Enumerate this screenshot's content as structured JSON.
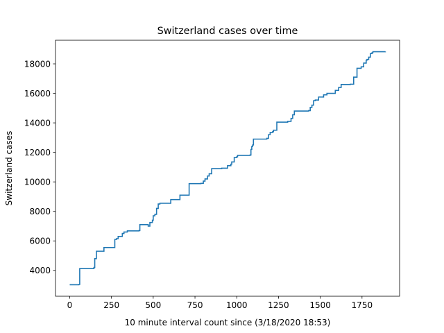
{
  "chart_data": {
    "type": "line",
    "title": "Switzerland cases over time",
    "xlabel": "10 minute interval count since (3/18/2020 18:53)",
    "ylabel": "Switzerland cases",
    "xlim": [
      -85,
      1975
    ],
    "ylim": [
      2250,
      19600
    ],
    "x_ticks": [
      0,
      250,
      500,
      750,
      1000,
      1250,
      1500,
      1750
    ],
    "y_ticks": [
      4000,
      6000,
      8000,
      10000,
      12000,
      14000,
      16000,
      18000
    ],
    "grid": false,
    "color": "#1f77b4",
    "series": [
      {
        "x": [
          0,
          55,
          60,
          145,
          150,
          160,
          205,
          270,
          280,
          290,
          315,
          325,
          345,
          415,
          420,
          470,
          480,
          495,
          500,
          510,
          520,
          530,
          540,
          605,
          660,
          715,
          785,
          800,
          810,
          825,
          835,
          850,
          910,
          945,
          965,
          970,
          985,
          1000,
          1005,
          1080,
          1085,
          1090,
          1095,
          1100,
          1180,
          1190,
          1200,
          1215,
          1220,
          1240,
          1305,
          1325,
          1335,
          1345,
          1430,
          1440,
          1450,
          1460,
          1470,
          1490,
          1520,
          1540,
          1590,
          1610,
          1625,
          1680,
          1700,
          1720,
          1745,
          1760,
          1775,
          1780,
          1790,
          1800,
          1810,
          1815,
          1890
        ],
        "y": [
          3030,
          3050,
          4120,
          4200,
          4800,
          5300,
          5550,
          6100,
          6150,
          6300,
          6500,
          6600,
          6680,
          6700,
          7100,
          7000,
          7250,
          7400,
          7700,
          7800,
          8200,
          8500,
          8550,
          8800,
          9100,
          9880,
          9900,
          10050,
          10200,
          10400,
          10550,
          10900,
          10930,
          11100,
          11200,
          11350,
          11650,
          11700,
          11800,
          11820,
          12200,
          12400,
          12500,
          12900,
          12950,
          13200,
          13350,
          13400,
          13500,
          14050,
          14100,
          14300,
          14550,
          14800,
          14830,
          15050,
          15200,
          15500,
          15550,
          15750,
          15900,
          16000,
          16200,
          16400,
          16600,
          16620,
          17100,
          17700,
          17800,
          18050,
          18250,
          18300,
          18450,
          18700,
          18750,
          18820,
          18830
        ]
      }
    ]
  }
}
